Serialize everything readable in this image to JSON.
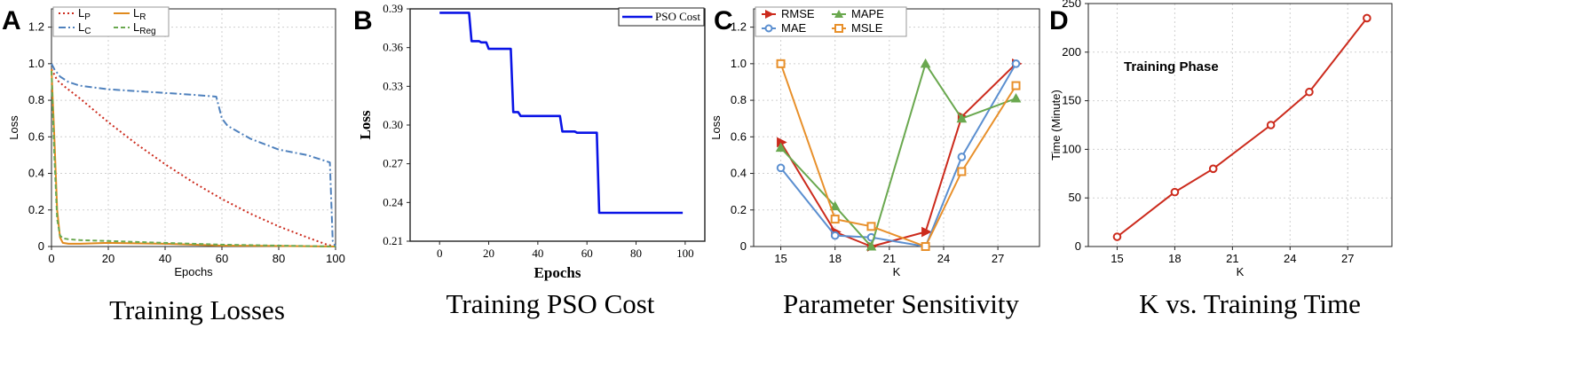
{
  "chart_data": [
    {
      "id": "A",
      "type": "line",
      "panel_letter": "A",
      "caption": "Training Losses",
      "xlabel": "Epochs",
      "ylabel": "Loss",
      "xlim": [
        0,
        100
      ],
      "ylim": [
        0,
        1.3
      ],
      "xticks": [
        0,
        20,
        40,
        60,
        80,
        100
      ],
      "yticks": [
        0,
        0.2,
        0.4,
        0.6,
        0.8,
        1.0,
        1.2
      ],
      "ytick_labels": [
        "0",
        "0.2",
        "0.4",
        "0.6",
        "0.8",
        "1.0",
        "1.2"
      ],
      "grid": true,
      "legend_position": "top-left",
      "series": [
        {
          "name": "L",
          "sub": "P",
          "color": "#cc2b1d",
          "dash": "dot",
          "x": [
            0,
            2,
            5,
            10,
            20,
            30,
            40,
            50,
            60,
            70,
            80,
            90,
            97,
            100
          ],
          "y": [
            0.97,
            0.91,
            0.87,
            0.81,
            0.68,
            0.56,
            0.45,
            0.35,
            0.26,
            0.18,
            0.11,
            0.05,
            0.01,
            0.0
          ]
        },
        {
          "name": "L",
          "sub": "C",
          "color": "#4f81bd",
          "dash": "dashdot",
          "x": [
            0,
            1,
            3,
            6,
            10,
            20,
            30,
            40,
            50,
            58,
            60,
            62,
            70,
            80,
            90,
            96,
            98,
            99,
            100
          ],
          "y": [
            1.0,
            0.97,
            0.93,
            0.9,
            0.88,
            0.86,
            0.85,
            0.84,
            0.83,
            0.82,
            0.7,
            0.66,
            0.59,
            0.53,
            0.5,
            0.47,
            0.46,
            0.03,
            0.0
          ]
        },
        {
          "name": "L",
          "sub": "R",
          "color": "#e08a1e",
          "dash": "solid",
          "x": [
            0,
            1,
            2,
            3,
            4,
            6,
            10,
            20,
            40,
            60,
            80,
            100
          ],
          "y": [
            0.97,
            0.6,
            0.2,
            0.05,
            0.02,
            0.015,
            0.015,
            0.02,
            0.015,
            0.005,
            0.003,
            0.0
          ]
        },
        {
          "name": "L",
          "sub": "Reg",
          "color": "#6aa84f",
          "dash": "dash",
          "x": [
            0,
            1,
            2,
            3,
            4,
            6,
            10,
            20,
            40,
            60,
            80,
            100
          ],
          "y": [
            0.96,
            0.5,
            0.15,
            0.06,
            0.045,
            0.04,
            0.035,
            0.03,
            0.02,
            0.01,
            0.005,
            0.0
          ]
        }
      ]
    },
    {
      "id": "B",
      "type": "line",
      "panel_letter": "B",
      "caption": "Training PSO Cost",
      "xlabel": "Epochs",
      "ylabel": "Loss",
      "xlim": [
        -12,
        108
      ],
      "ylim": [
        0.21,
        0.39
      ],
      "xticks": [
        0,
        20,
        40,
        60,
        80,
        100
      ],
      "yticks": [
        0.21,
        0.24,
        0.27,
        0.3,
        0.33,
        0.36,
        0.39
      ],
      "ytick_labels": [
        "0.21",
        "0.24",
        "0.27",
        "0.30",
        "0.33",
        "0.36",
        "0.39"
      ],
      "grid": false,
      "legend_position": "top-right",
      "series": [
        {
          "name": "PSO Cost",
          "color": "#0a14e6",
          "step": true,
          "x": [
            0,
            12,
            13,
            16,
            17,
            19,
            20,
            29,
            30,
            32,
            33,
            49,
            50,
            55,
            56,
            64,
            65,
            99
          ],
          "y": [
            0.387,
            0.387,
            0.365,
            0.365,
            0.364,
            0.364,
            0.359,
            0.359,
            0.31,
            0.31,
            0.307,
            0.307,
            0.295,
            0.295,
            0.294,
            0.294,
            0.232,
            0.232
          ]
        }
      ]
    },
    {
      "id": "C",
      "type": "line",
      "panel_letter": "C",
      "caption": "Parameter Sensitivity",
      "xlabel": "K",
      "ylabel": "Loss",
      "xlim": [
        13.5,
        29.3
      ],
      "ylim": [
        0,
        1.3
      ],
      "xticks": [
        15,
        18,
        21,
        24,
        27
      ],
      "yticks": [
        0,
        0.2,
        0.4,
        0.6,
        0.8,
        1.0,
        1.2
      ],
      "ytick_labels": [
        "0",
        "0.2",
        "0.4",
        "0.6",
        "0.8",
        "1.0",
        "1.2"
      ],
      "grid": true,
      "legend_position": "top-left",
      "series": [
        {
          "name": "RMSE",
          "color": "#cc2b1d",
          "marker": "triangle-right",
          "x": [
            15,
            18,
            20,
            23,
            25,
            28
          ],
          "y": [
            0.57,
            0.08,
            0.0,
            0.08,
            0.71,
            1.0
          ]
        },
        {
          "name": "MAE",
          "color": "#5b8fd0",
          "marker": "circle",
          "x": [
            15,
            18,
            20,
            23,
            25,
            28
          ],
          "y": [
            0.43,
            0.06,
            0.05,
            0.0,
            0.49,
            1.0
          ]
        },
        {
          "name": "MAPE",
          "color": "#6aa84f",
          "marker": "triangle-up",
          "x": [
            15,
            18,
            20,
            23,
            25,
            28
          ],
          "y": [
            0.54,
            0.22,
            0.0,
            1.0,
            0.7,
            0.81
          ]
        },
        {
          "name": "MSLE",
          "color": "#e8902b",
          "marker": "square",
          "x": [
            15,
            18,
            20,
            23,
            25,
            28
          ],
          "y": [
            1.0,
            0.15,
            0.11,
            0.0,
            0.41,
            0.88
          ]
        }
      ]
    },
    {
      "id": "D",
      "type": "line",
      "panel_letter": "D",
      "caption": "K vs. Training Time",
      "xlabel": "K",
      "ylabel": "Time (Minute)",
      "annotation": "Training Phase",
      "xlim": [
        13.5,
        29.3
      ],
      "ylim": [
        0,
        250
      ],
      "xticks": [
        15,
        18,
        21,
        24,
        27
      ],
      "yticks": [
        0,
        50,
        100,
        150,
        200,
        250
      ],
      "ytick_labels": [
        "0",
        "50",
        "100",
        "150",
        "200",
        "250"
      ],
      "grid": true,
      "series": [
        {
          "name": "Time",
          "color": "#cc2b1d",
          "marker": "circle",
          "x": [
            15,
            18,
            20,
            23,
            25,
            28
          ],
          "y": [
            10,
            56,
            80,
            125,
            159,
            235
          ]
        }
      ]
    }
  ]
}
